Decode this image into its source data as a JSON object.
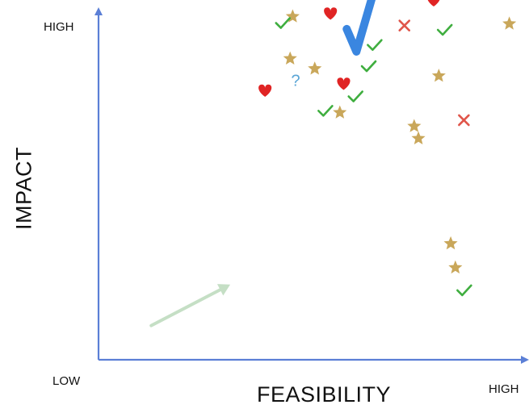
{
  "axes": {
    "y_title": "IMPACT",
    "x_title": "FEASIBILITY",
    "y_high": "HIGH",
    "origin_low": "LOW",
    "x_high": "HIGH"
  },
  "marker_glyphs": {
    "question": "?"
  },
  "colors": {
    "axis": "#5b7fd6",
    "star": "#c9a75a",
    "heart": "#e02424",
    "check": "#3fae3f",
    "cross": "#e0554a",
    "question": "#5aa5d6",
    "big_check": "#3a86e0",
    "arrow": "#c5dfc5"
  },
  "chart_data": {
    "type": "scatter",
    "title": "",
    "xlabel": "FEASIBILITY",
    "ylabel": "IMPACT",
    "x_tick_labels": [
      "LOW",
      "HIGH"
    ],
    "y_tick_labels": [
      "LOW",
      "HIGH"
    ],
    "xlim": [
      0,
      100
    ],
    "ylim": [
      0,
      100
    ],
    "grid": false,
    "series": [
      {
        "marker": "star",
        "points": [
          [
            45.7,
            95.4
          ],
          [
            45.1,
            83.7
          ],
          [
            50.9,
            80.9
          ],
          [
            56.8,
            68.7
          ],
          [
            74.3,
            64.9
          ],
          [
            75.3,
            61.5
          ],
          [
            80.1,
            78.9
          ],
          [
            96.7,
            93.4
          ],
          [
            82.9,
            32.3
          ],
          [
            84.0,
            25.6
          ]
        ]
      },
      {
        "marker": "heart",
        "points": [
          [
            54.6,
            96.3
          ],
          [
            39.2,
            74.9
          ],
          [
            57.7,
            76.8
          ],
          [
            78.9,
            100.0
          ]
        ]
      },
      {
        "marker": "check",
        "points": [
          [
            43.3,
            93.6
          ],
          [
            64.9,
            87.5
          ],
          [
            63.5,
            81.6
          ],
          [
            60.4,
            73.2
          ],
          [
            53.3,
            69.2
          ],
          [
            81.4,
            91.7
          ],
          [
            86.0,
            19.3
          ]
        ]
      },
      {
        "marker": "cross",
        "points": [
          [
            72.0,
            92.9
          ],
          [
            86.0,
            66.6
          ]
        ]
      },
      {
        "marker": "question",
        "points": [
          [
            46.4,
            77.7
          ]
        ]
      }
    ],
    "annotations": [
      {
        "type": "large-check",
        "at": [
          60.7,
          88.8
        ]
      },
      {
        "type": "arrow",
        "from": [
          12.4,
          9.5
        ],
        "to": [
          31.0,
          20.9
        ]
      }
    ]
  }
}
